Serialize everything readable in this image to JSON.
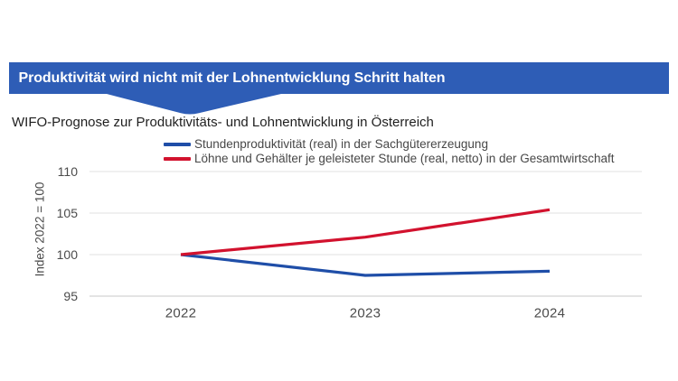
{
  "banner": {
    "label": "Produktivität wird nicht mit der Lohnentwicklung Schritt halten",
    "bg_color": "#2e5db6",
    "text_color": "#ffffff"
  },
  "subtitle": "WIFO-Prognose zur Produktivitäts- und Lohnentwicklung in Österreich",
  "chart_data": {
    "type": "line",
    "title": "Produktivität wird nicht mit der Lohnentwicklung Schritt halten",
    "subtitle": "WIFO-Prognose zur Produktivitäts- und Lohnentwicklung in Österreich",
    "categories": [
      2022,
      2023,
      2024
    ],
    "series": [
      {
        "name": "Stundenproduktivität (real) in der Sachgütererzeugung",
        "color": "#1f4ea8",
        "values": [
          100,
          97.5,
          98.0
        ]
      },
      {
        "name": "Löhne und Gehälter je geleisteter Stunde (real, netto) in der Gesamtwirtschaft",
        "color": "#d2122e",
        "values": [
          100,
          102.1,
          105.4
        ]
      }
    ],
    "xlabel": "",
    "ylabel": "Index 2022 = 100",
    "yticks": [
      95,
      100,
      105,
      110
    ],
    "ylim": [
      95,
      110
    ],
    "grid": true,
    "legend_position": "top"
  }
}
